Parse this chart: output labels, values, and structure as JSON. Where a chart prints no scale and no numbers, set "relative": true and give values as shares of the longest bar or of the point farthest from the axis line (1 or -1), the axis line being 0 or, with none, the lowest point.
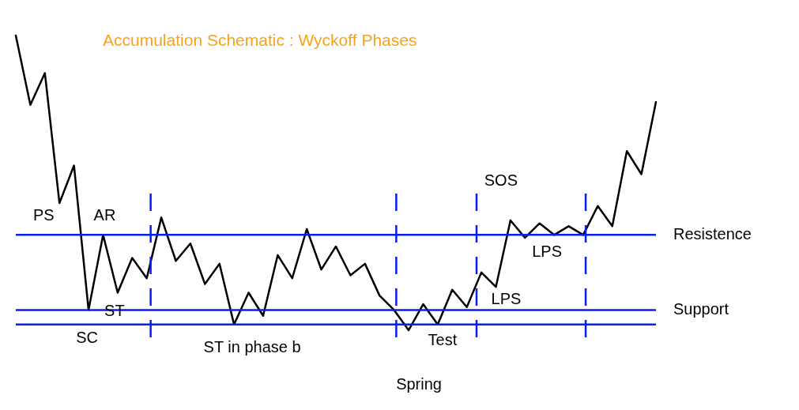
{
  "chart_data": {
    "type": "line",
    "title": "Accumulation Schematic : Wyckoff Phases",
    "relative": true,
    "marker": "none",
    "line_style": "solid",
    "categories": [
      null,
      null,
      null,
      null,
      null,
      null,
      null,
      null,
      null,
      null,
      null,
      null,
      null,
      null,
      null,
      null,
      null,
      null,
      null,
      null,
      null,
      null,
      null,
      null,
      null,
      null,
      null,
      null,
      null,
      null,
      null,
      null,
      null,
      null,
      null,
      null,
      null,
      null,
      null,
      null,
      null,
      null,
      null,
      null,
      null
    ],
    "series": [
      {
        "color": "#000000",
        "values": [
          1,
          0.76,
          0.87,
          0.42,
          0.55,
          0.05,
          0.31,
          0.11,
          0.23,
          0.16,
          0.37,
          0.22,
          0.28,
          0.14,
          0.21,
          0,
          0.11,
          0.03,
          0.24,
          0.16,
          0.33,
          0.19,
          0.27,
          0.17,
          0.21,
          0.1,
          0.05,
          -0.02,
          0.07,
          0,
          0.12,
          0.06,
          0.18,
          0.13,
          0.36,
          0.3,
          0.35,
          0.31,
          0.34,
          0.31,
          0.41,
          0.34,
          0.6,
          0.52,
          0.77
        ]
      }
    ],
    "ref_lines": [
      {
        "axis": "y",
        "value": 0.31,
        "label": "Resistence",
        "color": "#0a1ef0"
      },
      {
        "axis": "y",
        "value": 0.05,
        "label": "Support",
        "color": "#0a1ef0"
      },
      {
        "axis": "y",
        "value": 0,
        "color": "#0a1ef0"
      }
    ],
    "annotations": [
      "PS",
      "AR",
      "SC",
      "ST",
      "ST in phase b",
      "Spring",
      "Test",
      "LPS",
      "SOS",
      "LPS"
    ]
  }
}
